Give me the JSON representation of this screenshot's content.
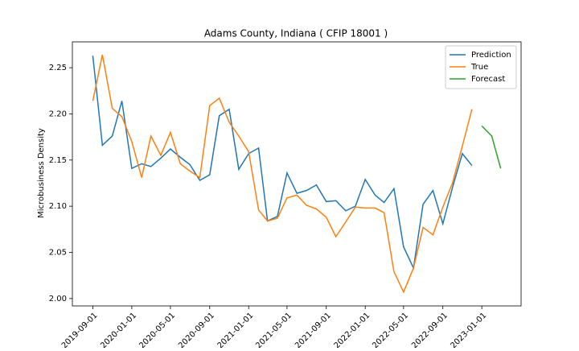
{
  "chart_data": {
    "type": "line",
    "title": "Adams County, Indiana ( CFIP 18001 )",
    "y_label": "Microbusiness Density",
    "xlim": [
      "2019-06-29",
      "2023-05-04"
    ],
    "xticks": [
      "2019-09-01",
      "2020-01-01",
      "2020-05-01",
      "2020-09-01",
      "2021-01-01",
      "2021-05-01",
      "2021-09-01",
      "2022-01-01",
      "2022-05-01",
      "2022-09-01",
      "2023-01-01"
    ],
    "ylim": [
      1.992,
      2.278
    ],
    "yticks": [
      {
        "value": 2.0,
        "label": "2.00"
      },
      2.05,
      {
        "value": 2.1,
        "label": "2.10"
      },
      2.15,
      {
        "value": 2.2,
        "label": "2.20"
      },
      2.25
    ],
    "grid": false,
    "legend": "upper right",
    "series": [
      {
        "name": "Prediction",
        "color": "#1f77b4",
        "x": [
          "2019-09-01",
          "2019-10-01",
          "2019-11-01",
          "2019-12-01",
          "2020-01-01",
          "2020-02-01",
          "2020-03-01",
          "2020-04-01",
          "2020-05-01",
          "2020-06-01",
          "2020-07-01",
          "2020-08-01",
          "2020-09-01",
          "2020-10-01",
          "2020-11-01",
          "2020-12-01",
          "2021-01-01",
          "2021-02-01",
          "2021-03-01",
          "2021-04-01",
          "2021-05-01",
          "2021-06-01",
          "2021-07-01",
          "2021-08-01",
          "2021-09-01",
          "2021-10-01",
          "2021-11-01",
          "2021-12-01",
          "2022-01-01",
          "2022-02-01",
          "2022-03-01",
          "2022-04-01",
          "2022-05-01",
          "2022-06-01",
          "2022-07-01",
          "2022-08-01",
          "2022-09-01",
          "2022-10-01",
          "2022-11-01",
          "2022-12-01"
        ],
        "values": [
          2.263,
          2.166,
          2.176,
          2.214,
          2.141,
          2.146,
          2.143,
          2.152,
          2.162,
          2.153,
          2.145,
          2.128,
          2.134,
          2.198,
          2.205,
          2.14,
          2.157,
          2.163,
          2.084,
          2.089,
          2.136,
          2.114,
          2.117,
          2.123,
          2.105,
          2.106,
          2.095,
          2.1,
          2.129,
          2.112,
          2.104,
          2.119,
          2.056,
          2.033,
          2.102,
          2.117,
          2.081,
          2.12,
          2.157,
          2.144
        ]
      },
      {
        "name": "True",
        "color": "#ff7f0e",
        "x": [
          "2019-09-01",
          "2019-10-01",
          "2019-11-01",
          "2019-12-01",
          "2020-01-01",
          "2020-02-01",
          "2020-03-01",
          "2020-04-01",
          "2020-05-01",
          "2020-06-01",
          "2020-07-01",
          "2020-08-01",
          "2020-09-01",
          "2020-10-01",
          "2020-11-01",
          "2020-12-01",
          "2021-01-01",
          "2021-02-01",
          "2021-03-01",
          "2021-04-01",
          "2021-05-01",
          "2021-06-01",
          "2021-07-01",
          "2021-08-01",
          "2021-09-01",
          "2021-10-01",
          "2021-11-01",
          "2021-12-01",
          "2022-01-01",
          "2022-02-01",
          "2022-03-01",
          "2022-04-01",
          "2022-05-01",
          "2022-06-01",
          "2022-07-01",
          "2022-08-01",
          "2022-09-01",
          "2022-10-01",
          "2022-11-01",
          "2022-12-01"
        ],
        "values": [
          2.214,
          2.264,
          2.206,
          2.197,
          2.17,
          2.131,
          2.176,
          2.155,
          2.18,
          2.146,
          2.138,
          2.131,
          2.209,
          2.217,
          2.191,
          2.176,
          2.159,
          2.096,
          2.084,
          2.087,
          2.109,
          2.112,
          2.101,
          2.097,
          2.088,
          2.067,
          2.083,
          2.099,
          2.098,
          2.098,
          2.093,
          2.029,
          2.007,
          2.033,
          2.077,
          2.069,
          2.099,
          2.125,
          2.165,
          2.205
        ]
      },
      {
        "name": "Forecast",
        "color": "#2ca02c",
        "x": [
          "2023-01-01",
          "2023-02-01",
          "2023-03-01"
        ],
        "values": [
          2.187,
          2.176,
          2.141
        ]
      }
    ]
  }
}
